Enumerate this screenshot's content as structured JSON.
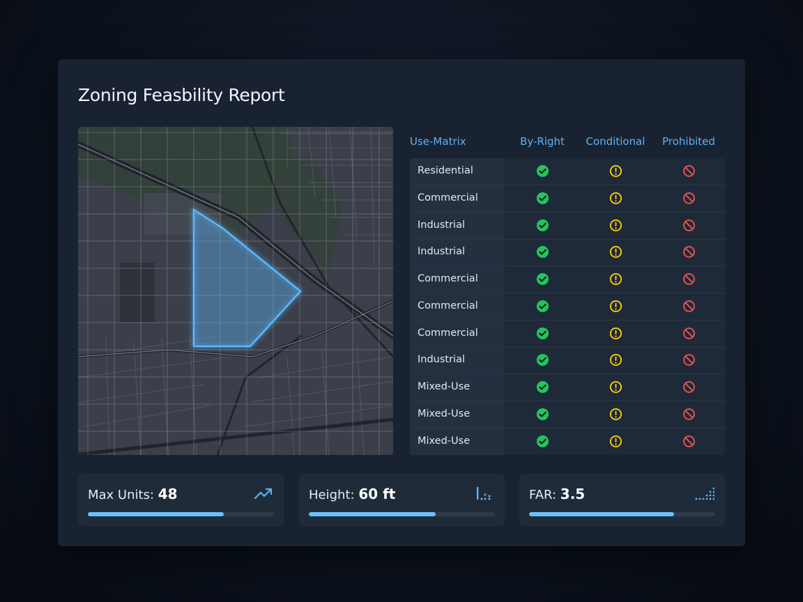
{
  "report": {
    "title": "Zoning Feasbility Report"
  },
  "matrix": {
    "headers": [
      "Use-Matrix",
      "By-Right",
      "Conditional",
      "Prohibited"
    ],
    "rows": [
      {
        "label": "Residential",
        "by_right": "check",
        "conditional": "warning",
        "prohibited": "prohibited"
      },
      {
        "label": "Commercial",
        "by_right": "check",
        "conditional": "warning",
        "prohibited": "prohibited"
      },
      {
        "label": "Industrial",
        "by_right": "check",
        "conditional": "warning",
        "prohibited": "prohibited"
      },
      {
        "label": "Industrial",
        "by_right": "check",
        "conditional": "warning",
        "prohibited": "prohibited"
      },
      {
        "label": "Commercial",
        "by_right": "check",
        "conditional": "warning",
        "prohibited": "prohibited"
      },
      {
        "label": "Commercial",
        "by_right": "check",
        "conditional": "warning",
        "prohibited": "prohibited"
      },
      {
        "label": "Commercial",
        "by_right": "check",
        "conditional": "warning",
        "prohibited": "prohibited"
      },
      {
        "label": "Industrial",
        "by_right": "check",
        "conditional": "warning",
        "prohibited": "prohibited"
      },
      {
        "label": "Mixed-Use",
        "by_right": "check",
        "conditional": "warning",
        "prohibited": "prohibited"
      },
      {
        "label": "Mixed-Use",
        "by_right": "check",
        "conditional": "warning",
        "prohibited": "prohibited"
      },
      {
        "label": "Mixed-Use",
        "by_right": "check",
        "conditional": "warning",
        "prohibited": "prohibited"
      }
    ]
  },
  "stats": [
    {
      "label": "Max Units:",
      "value": "48",
      "progress": 0.73,
      "icon": "trending-up-icon"
    },
    {
      "label": "Height:",
      "value": "60 ft",
      "progress": 0.68,
      "icon": "bar-dots-icon"
    },
    {
      "label": "FAR:",
      "value": "3.5",
      "progress": 0.78,
      "icon": "signal-dots-icon"
    }
  ],
  "colors": {
    "accent": "#5fb2f2",
    "check": "#22c55e",
    "warning": "#facc15",
    "prohibited": "#ef5350",
    "parcel_outline": "#5ab8ff"
  }
}
